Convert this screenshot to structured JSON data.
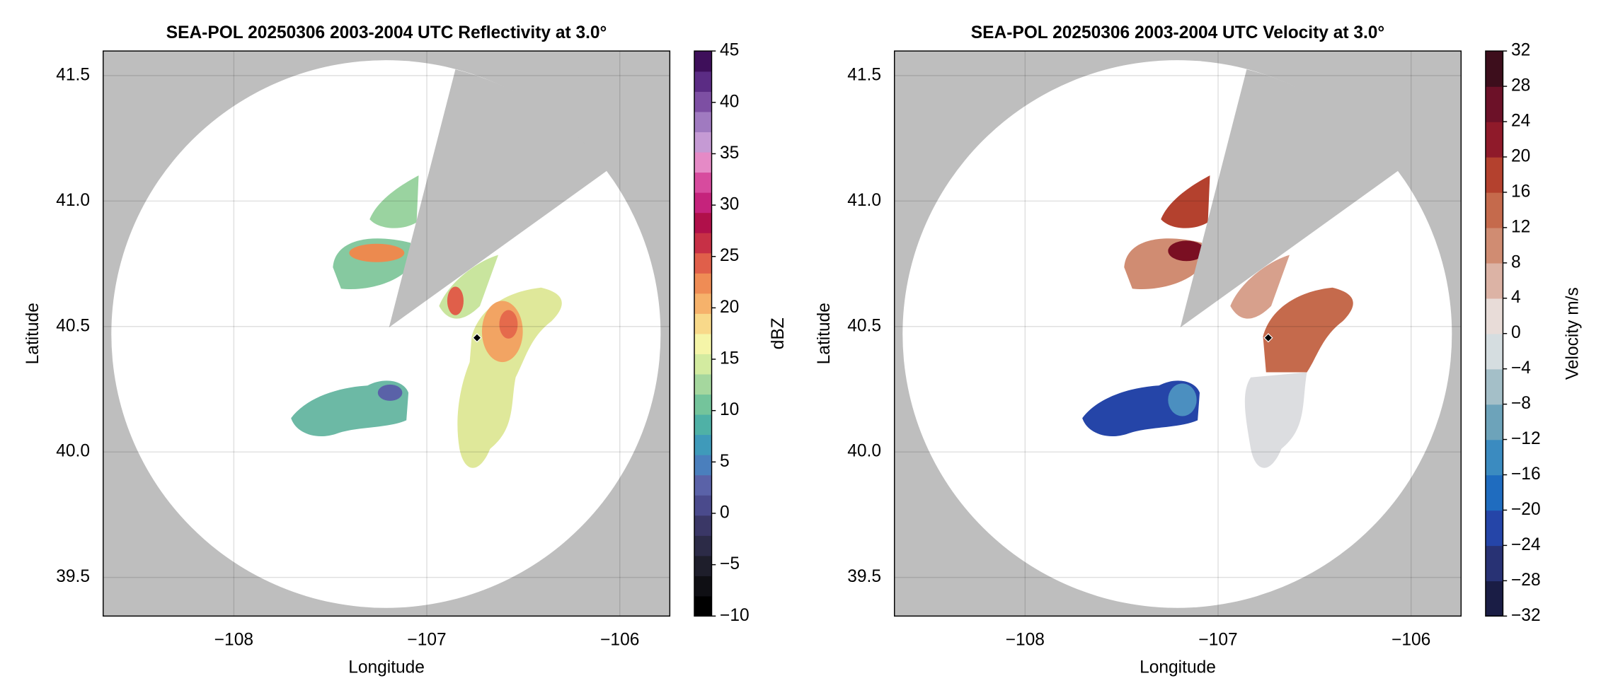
{
  "chart_data": [
    {
      "type": "map",
      "title": "SEA-POL 20250306 2003-2004 UTC Reflectivity at 3.0°",
      "x_label": "Longitude",
      "y_label": "Latitude",
      "xlim": [
        -108.677,
        -105.741
      ],
      "ylim": [
        39.346,
        41.598
      ],
      "xticks": [
        {
          "value": -108,
          "label": "−108"
        },
        {
          "value": -107,
          "label": "−107"
        },
        {
          "value": -106,
          "label": "−106"
        }
      ],
      "yticks": [
        {
          "value": 39.5,
          "label": "39.5"
        },
        {
          "value": 40,
          "label": "40.0"
        },
        {
          "value": 40.5,
          "label": "40.5"
        },
        {
          "value": 41,
          "label": "41.0"
        },
        {
          "value": 41.5,
          "label": "41.5"
        }
      ],
      "grid": true,
      "radar_location": {
        "x": -106.74,
        "y": 40.455
      },
      "colorbar": {
        "label": "dBZ",
        "lim": [
          -10,
          45
        ],
        "ticks": [
          {
            "value": -10,
            "label": "−10"
          },
          {
            "value": -5,
            "label": "−5"
          },
          0,
          5,
          10,
          15,
          20,
          25,
          30,
          35,
          40,
          45
        ],
        "colors": [
          "#000000",
          "#0f0f14",
          "#1e1e2b",
          "#2c2b47",
          "#3a3766",
          "#4a4a8c",
          "#5a62a8",
          "#4a7fbd",
          "#3f9aba",
          "#4fb1a6",
          "#74c49b",
          "#a5d79e",
          "#d3eba0",
          "#f5f5a8",
          "#f8d98a",
          "#f6b26b",
          "#ef8c55",
          "#e05f4a",
          "#c73046",
          "#b0104a",
          "#c5237c",
          "#d74b9e",
          "#e58ac6",
          "#c59ad4",
          "#a07ac0",
          "#7d4fa3",
          "#5b2c84",
          "#3e0f5a"
        ]
      }
    },
    {
      "type": "map",
      "title": "SEA-POL 20250306 2003-2004 UTC Velocity at 3.0°",
      "x_label": "Longitude",
      "y_label": "Latitude",
      "xlim": [
        -108.677,
        -105.741
      ],
      "ylim": [
        39.346,
        41.598
      ],
      "xticks": [
        {
          "value": -108,
          "label": "−108"
        },
        {
          "value": -107,
          "label": "−107"
        },
        {
          "value": -106,
          "label": "−106"
        }
      ],
      "yticks": [
        {
          "value": 39.5,
          "label": "39.5"
        },
        {
          "value": 40,
          "label": "40.0"
        },
        {
          "value": 40.5,
          "label": "40.5"
        },
        {
          "value": 41,
          "label": "41.0"
        },
        {
          "value": 41.5,
          "label": "41.5"
        }
      ],
      "grid": true,
      "radar_location": {
        "x": -106.74,
        "y": 40.455
      },
      "colorbar": {
        "label": "Velocity m/s",
        "lim": [
          -32,
          32
        ],
        "ticks": [
          {
            "value": -32,
            "label": "−32"
          },
          {
            "value": -28,
            "label": "−28"
          },
          {
            "value": -24,
            "label": "−24"
          },
          {
            "value": -20,
            "label": "−20"
          },
          {
            "value": -16,
            "label": "−16"
          },
          {
            "value": -12,
            "label": "−12"
          },
          {
            "value": -8,
            "label": "−8"
          },
          {
            "value": -4,
            "label": "−4"
          },
          0,
          4,
          8,
          12,
          16,
          20,
          24,
          28,
          32
        ],
        "colors": [
          "#1a1d45",
          "#283274",
          "#2545a8",
          "#1f6cbf",
          "#3b8bc0",
          "#6da3ba",
          "#a4bfc8",
          "#d5dde0",
          "#e8dcd8",
          "#dcb3a5",
          "#d08c72",
          "#c56a4c",
          "#b4412e",
          "#8f1a2a",
          "#6c1128",
          "#3d0e1c"
        ]
      }
    }
  ]
}
